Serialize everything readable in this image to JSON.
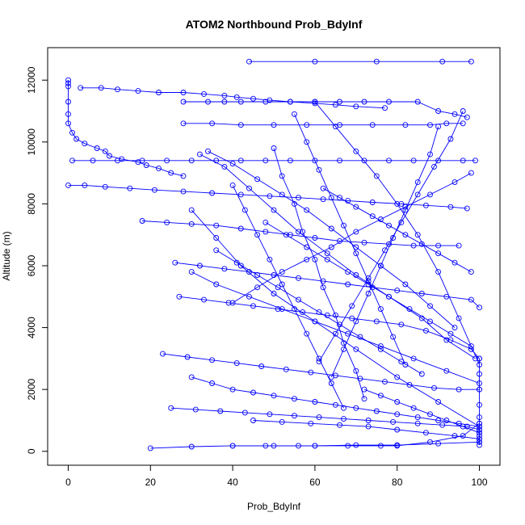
{
  "chart_data": {
    "type": "line",
    "title": "ATOM2 Northbound Prob_BdyInf",
    "xlabel": "Prob_BdyInf",
    "ylabel": "Altitude (m)",
    "xlim": [
      -5,
      105
    ],
    "ylim": [
      -450,
      13050
    ],
    "x_ticks": [
      0,
      20,
      40,
      60,
      80,
      100
    ],
    "y_ticks": [
      0,
      2000,
      4000,
      6000,
      8000,
      10000,
      12000
    ],
    "grid": false,
    "legend": "none",
    "series_color": "#0000ff",
    "marker": "open-circle",
    "series": [
      {
        "x": [
          0,
          0,
          0,
          0,
          0,
          0,
          1,
          2,
          4,
          7,
          9,
          10,
          13,
          17,
          19,
          22,
          25,
          28
        ],
        "y": [
          12000,
          11900,
          11800,
          11300,
          10900,
          10600,
          10300,
          10100,
          9950,
          9800,
          9700,
          9550,
          9450,
          9350,
          9250,
          9150,
          9000,
          8900
        ]
      },
      {
        "x": [
          3,
          8,
          12,
          17,
          22,
          28,
          33,
          38,
          41,
          45,
          49,
          54,
          60,
          65,
          70,
          77
        ],
        "y": [
          11750,
          11750,
          11700,
          11650,
          11600,
          11600,
          11550,
          11500,
          11450,
          11400,
          11350,
          11300,
          11250,
          11200,
          11150,
          11100
        ]
      },
      {
        "x": [
          44,
          60,
          75,
          91,
          98
        ],
        "y": [
          12600,
          12600,
          12600,
          12600,
          12600
        ]
      },
      {
        "x": [
          28,
          34,
          38,
          42,
          48,
          54,
          60,
          66,
          72,
          78,
          85,
          90,
          94,
          97
        ],
        "y": [
          11300,
          11300,
          11300,
          11300,
          11300,
          11300,
          11300,
          11300,
          11300,
          11300,
          11300,
          11000,
          10900,
          10800
        ]
      },
      {
        "x": [
          28,
          35,
          42,
          50,
          58,
          66,
          74,
          82,
          88,
          92,
          96
        ],
        "y": [
          10600,
          10600,
          10550,
          10550,
          10550,
          10550,
          10550,
          10550,
          10550,
          10600,
          10600
        ]
      },
      {
        "x": [
          1,
          6,
          12,
          18,
          24,
          30,
          36,
          42,
          48,
          54,
          60,
          66,
          72,
          78,
          84,
          90,
          96,
          99
        ],
        "y": [
          9400,
          9400,
          9400,
          9400,
          9400,
          9400,
          9400,
          9400,
          9400,
          9400,
          9400,
          9400,
          9400,
          9400,
          9400,
          9400,
          9400,
          9400
        ]
      },
      {
        "x": [
          0,
          4,
          9,
          15,
          21,
          28,
          35,
          42,
          49,
          56,
          62,
          68,
          74,
          81,
          87,
          93,
          97
        ],
        "y": [
          8600,
          8600,
          8550,
          8500,
          8450,
          8400,
          8350,
          8300,
          8250,
          8200,
          8150,
          8100,
          8050,
          8000,
          7950,
          7900,
          7850
        ]
      },
      {
        "x": [
          18,
          24,
          30,
          36,
          42,
          48,
          54,
          60,
          66,
          72,
          78,
          84,
          90,
          95
        ],
        "y": [
          7450,
          7400,
          7350,
          7300,
          7200,
          7100,
          7000,
          6900,
          6800,
          6750,
          6700,
          6650,
          6650,
          6650
        ]
      },
      {
        "x": [
          26,
          32,
          38,
          44,
          50,
          56,
          62,
          68,
          74,
          80,
          86,
          92,
          98,
          100
        ],
        "y": [
          6100,
          6000,
          5900,
          5800,
          5700,
          5600,
          5500,
          5400,
          5300,
          5200,
          5100,
          5000,
          4900,
          4650
        ]
      },
      {
        "x": [
          27,
          33,
          39,
          45,
          51,
          57,
          63,
          69,
          75,
          81,
          87,
          93,
          98,
          100
        ],
        "y": [
          5000,
          4900,
          4800,
          4700,
          4600,
          4500,
          4400,
          4300,
          4200,
          4100,
          3900,
          3600,
          3300,
          3000
        ]
      },
      {
        "x": [
          23,
          29,
          35,
          41,
          47,
          53,
          59,
          65,
          71,
          77,
          83,
          89,
          95,
          100
        ],
        "y": [
          3150,
          3050,
          2950,
          2850,
          2750,
          2650,
          2550,
          2450,
          2350,
          2250,
          2150,
          2050,
          2000,
          2000
        ]
      },
      {
        "x": [
          25,
          31,
          37,
          43,
          49,
          55,
          61,
          67,
          73,
          79,
          85,
          91,
          97,
          100
        ],
        "y": [
          1400,
          1350,
          1300,
          1250,
          1200,
          1150,
          1100,
          1050,
          1000,
          950,
          900,
          850,
          800,
          700
        ]
      },
      {
        "x": [
          20,
          30,
          40,
          50,
          60,
          70,
          80,
          90,
          100
        ],
        "y": [
          100,
          150,
          180,
          180,
          180,
          200,
          200,
          250,
          300
        ]
      },
      {
        "x": [
          40,
          48,
          56,
          60,
          68,
          76,
          80,
          88,
          96,
          100
        ],
        "y": [
          180,
          180,
          180,
          180,
          180,
          180,
          180,
          300,
          500,
          900
        ]
      },
      {
        "x": [
          45,
          52,
          59,
          66,
          73,
          80,
          87,
          94,
          100
        ],
        "y": [
          1000,
          950,
          900,
          850,
          800,
          700,
          600,
          500,
          400
        ]
      },
      {
        "x": [
          100,
          92,
          84,
          76,
          68,
          60,
          52,
          44,
          36,
          30
        ],
        "y": [
          2200,
          2600,
          3000,
          3400,
          3800,
          4200,
          4600,
          5000,
          5400,
          5800
        ]
      },
      {
        "x": [
          100,
          90,
          80,
          70,
          60,
          50,
          42,
          36,
          30
        ],
        "y": [
          800,
          1600,
          2400,
          3300,
          4200,
          5100,
          6000,
          6900,
          7800
        ]
      },
      {
        "x": [
          99,
          92,
          86,
          78,
          70,
          63,
          56,
          50,
          44,
          38,
          32
        ],
        "y": [
          3000,
          3600,
          4300,
          5000,
          5700,
          6400,
          7100,
          7800,
          8500,
          9200,
          9600
        ]
      },
      {
        "x": [
          98,
          94,
          88,
          82,
          76,
          70,
          64,
          58,
          52,
          46,
          40
        ],
        "y": [
          9000,
          8700,
          8300,
          7900,
          7500,
          7100,
          6600,
          6200,
          5800,
          5300,
          4800
        ]
      },
      {
        "x": [
          34,
          40,
          46,
          52,
          58,
          64,
          70,
          76,
          82,
          88,
          94
        ],
        "y": [
          9700,
          9300,
          8800,
          8300,
          7800,
          7200,
          6600,
          6000,
          5400,
          4700,
          4000
        ]
      },
      {
        "x": [
          60,
          65,
          70,
          75,
          80,
          85,
          90,
          95,
          100
        ],
        "y": [
          11300,
          10500,
          9700,
          8900,
          8000,
          7000,
          5800,
          4300,
          2800
        ]
      },
      {
        "x": [
          55,
          58,
          61,
          64,
          67,
          70,
          73,
          76,
          79,
          82
        ],
        "y": [
          10900,
          10000,
          9100,
          8200,
          7300,
          6400,
          5500,
          4600,
          3700,
          2800
        ]
      },
      {
        "x": [
          50,
          52,
          55,
          57,
          60,
          62,
          65,
          67,
          70,
          72
        ],
        "y": [
          9800,
          8900,
          8000,
          7100,
          6200,
          5300,
          4400,
          3500,
          2600,
          1700
        ]
      },
      {
        "x": [
          40,
          43,
          46,
          49,
          52,
          55,
          58,
          61,
          64,
          67
        ],
        "y": [
          8600,
          7800,
          7000,
          6200,
          5400,
          4600,
          3800,
          3000,
          2200,
          1400
        ]
      },
      {
        "x": [
          90,
          88,
          85,
          82,
          79,
          76,
          73,
          70,
          67,
          64
        ],
        "y": [
          10500,
          9600,
          8700,
          7800,
          6900,
          6000,
          5100,
          4200,
          3300,
          2400
        ]
      },
      {
        "x": [
          96,
          93,
          89,
          85,
          81,
          77,
          73,
          69,
          65,
          61
        ],
        "y": [
          11000,
          10100,
          9200,
          8300,
          7400,
          6500,
          5600,
          4700,
          3800,
          2900
        ]
      },
      {
        "x": [
          30,
          35,
          40,
          45,
          50,
          55,
          60,
          65,
          70,
          75,
          80,
          85,
          90,
          95,
          100
        ],
        "y": [
          2400,
          2200,
          2000,
          1900,
          1800,
          1700,
          1600,
          1500,
          1400,
          1300,
          1200,
          1100,
          1000,
          900,
          800
        ]
      },
      {
        "x": [
          100,
          100,
          100,
          100,
          100,
          100,
          100,
          100,
          100,
          100,
          100,
          100
        ],
        "y": [
          200,
          300,
          400,
          500,
          600,
          700,
          900,
          1100,
          1500,
          2000,
          2500,
          3000
        ]
      },
      {
        "x": [
          72,
          76,
          80,
          84,
          88,
          92,
          96,
          100
        ],
        "y": [
          2000,
          1800,
          1600,
          1400,
          1200,
          1000,
          800,
          600
        ]
      },
      {
        "x": [
          48,
          53,
          58,
          63,
          68,
          73,
          78,
          83,
          88,
          93,
          98
        ],
        "y": [
          7400,
          7000,
          6600,
          6200,
          5800,
          5400,
          5000,
          4600,
          4200,
          3800,
          3400
        ]
      },
      {
        "x": [
          36,
          41,
          46,
          51,
          56,
          61,
          66,
          71,
          76,
          81,
          86
        ],
        "y": [
          6500,
          6100,
          5700,
          5300,
          4900,
          4500,
          4100,
          3700,
          3300,
          2900,
          2500
        ]
      },
      {
        "x": [
          62,
          66,
          70,
          74,
          78,
          82,
          86,
          90,
          94,
          98
        ],
        "y": [
          8500,
          8200,
          7900,
          7600,
          7300,
          7000,
          6700,
          6400,
          6100,
          5800
        ]
      }
    ]
  }
}
